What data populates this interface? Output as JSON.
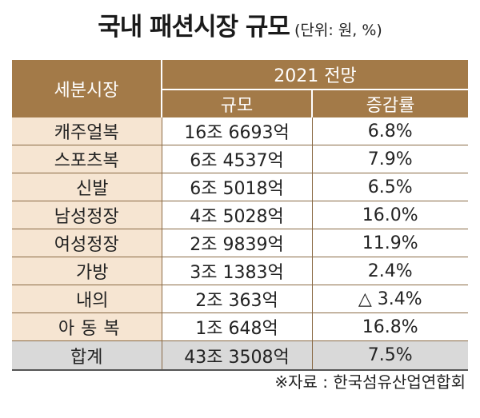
{
  "title": "국내 패션시장 규모",
  "unit": "(단위: 원, %)",
  "header": {
    "segment": "세분시장",
    "forecast": "2021 전망",
    "size": "규모",
    "rate": "증감률"
  },
  "rows": [
    {
      "name": "캐주얼복",
      "size": "16조 6693억",
      "rate": "6.8%"
    },
    {
      "name": "스포츠복",
      "size": "6조 4537억",
      "rate": "7.9%"
    },
    {
      "name": "신발",
      "size": "6조 5018억",
      "rate": "6.5%"
    },
    {
      "name": "남성정장",
      "size": "4조 5028억",
      "rate": "16.0%"
    },
    {
      "name": "여성정장",
      "size": "2조 9839억",
      "rate": "11.9%"
    },
    {
      "name": "가방",
      "size": "3조 1383억",
      "rate": "2.4%"
    },
    {
      "name": "내의",
      "size": "2조 363억",
      "rate": "△ 3.4%"
    },
    {
      "name": "아동복",
      "size": "1조 648억",
      "rate": "16.8%"
    }
  ],
  "total": {
    "name": "합계",
    "size": "43조 3508억",
    "rate": "7.5%"
  },
  "source": "※자료 : 한국섬유산업연합회"
}
